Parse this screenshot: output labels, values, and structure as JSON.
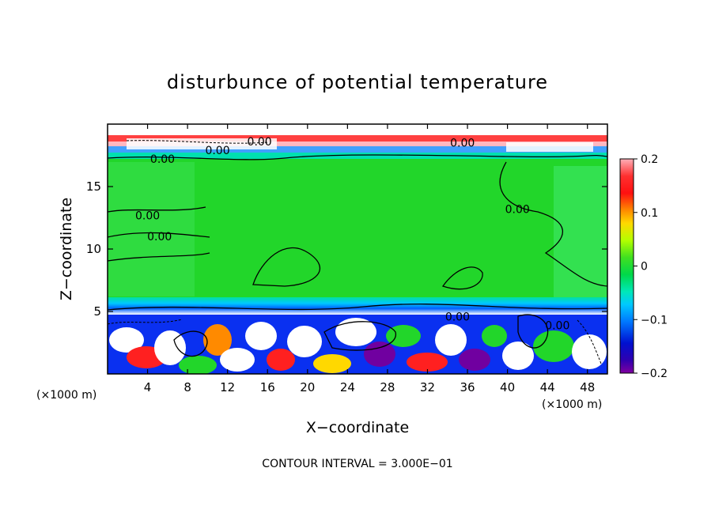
{
  "chart_data": {
    "type": "heatmap",
    "title": "disturbunce of potential temperature",
    "xlabel": "X−coordinate",
    "ylabel": "Z−coordinate",
    "x_unit_label": "(×1000 m)",
    "y_unit_label": "(×1000 m)",
    "x_ticks": [
      4,
      8,
      12,
      16,
      20,
      24,
      28,
      32,
      36,
      40,
      44,
      48
    ],
    "y_ticks": [
      5,
      10,
      15
    ],
    "xlim": [
      0,
      50
    ],
    "ylim": [
      0,
      20
    ],
    "colorbar": {
      "ticks": [
        0.2,
        0.1,
        0,
        -0.1,
        -0.2
      ],
      "tick_labels": [
        "0.2",
        "0.1",
        "0",
        "−0.1",
        "−0.2"
      ],
      "range": [
        -0.2,
        0.2
      ],
      "colors": [
        "#ff9aa6",
        "#ff1a1a",
        "#ff7a00",
        "#ffd200",
        "#c8ff00",
        "#64e000",
        "#00d23c",
        "#00e6aa",
        "#00c8ff",
        "#0078ff",
        "#0010d0",
        "#7000a0"
      ]
    },
    "contour_labels": [
      {
        "text": "0.00",
        "x": 15.2,
        "y": 18.6
      },
      {
        "text": "0.00",
        "x": 11.0,
        "y": 17.9
      },
      {
        "text": "0.00",
        "x": 5.5,
        "y": 17.2
      },
      {
        "text": "0.00",
        "x": 35.5,
        "y": 18.5
      },
      {
        "text": "0.00",
        "x": 4.0,
        "y": 12.7
      },
      {
        "text": "0.00",
        "x": 5.2,
        "y": 11.0
      },
      {
        "text": "0.00",
        "x": 41.0,
        "y": 13.2
      },
      {
        "text": "0.00",
        "x": 35.0,
        "y": 4.6
      },
      {
        "text": "0.00",
        "x": 45.0,
        "y": 3.9
      }
    ],
    "contour_interval_text": "CONTOUR INTERVAL = 3.000E−01"
  }
}
